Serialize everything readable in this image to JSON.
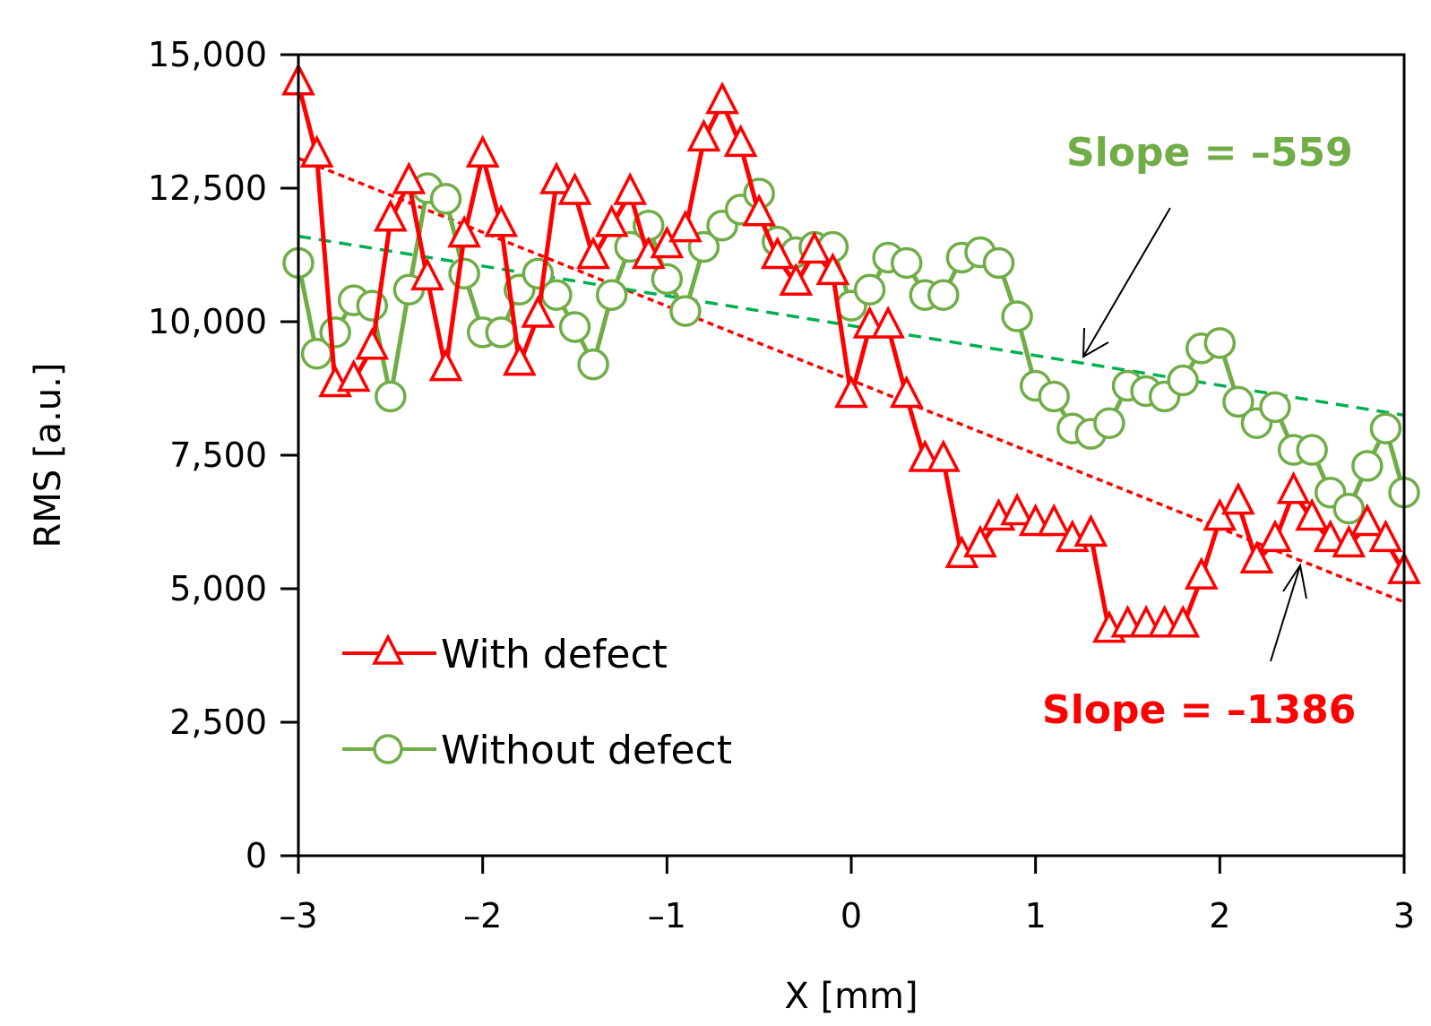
{
  "chart_data": {
    "type": "line",
    "title": "",
    "xlabel": "X [mm]",
    "ylabel": "RMS [a.u.]",
    "xlim": [
      -3,
      3
    ],
    "ylim": [
      0,
      15000
    ],
    "xticks": [
      -3,
      -2,
      -1,
      0,
      1,
      2,
      3
    ],
    "xtick_labels": [
      "–3",
      "–2",
      "–1",
      "0",
      "1",
      "2",
      "3"
    ],
    "yticks": [
      0,
      2500,
      5000,
      7500,
      10000,
      12500,
      15000
    ],
    "ytick_labels": [
      "0",
      "2,500",
      "5,000",
      "7,500",
      "10,000",
      "12,500",
      "15,000"
    ],
    "grid": false,
    "legend_position": "bottom-left",
    "series": [
      {
        "name": "With defect",
        "color": "#ff0000",
        "marker": "triangle",
        "x": [
          -3.0,
          -2.9,
          -2.8,
          -2.7,
          -2.6,
          -2.5,
          -2.4,
          -2.3,
          -2.2,
          -2.1,
          -2.0,
          -1.9,
          -1.8,
          -1.7,
          -1.6,
          -1.5,
          -1.4,
          -1.3,
          -1.2,
          -1.1,
          -1.0,
          -0.9,
          -0.8,
          -0.7,
          -0.6,
          -0.5,
          -0.4,
          -0.3,
          -0.2,
          -0.1,
          0.0,
          0.1,
          0.2,
          0.3,
          0.4,
          0.5,
          0.6,
          0.7,
          0.8,
          0.9,
          1.0,
          1.1,
          1.2,
          1.3,
          1.4,
          1.5,
          1.6,
          1.7,
          1.8,
          1.9,
          2.0,
          2.1,
          2.2,
          2.3,
          2.4,
          2.5,
          2.6,
          2.7,
          2.8,
          2.9,
          3.0
        ],
        "y": [
          14450,
          13100,
          8800,
          8900,
          9500,
          11900,
          12600,
          10800,
          9100,
          11600,
          13100,
          11800,
          9200,
          10100,
          12600,
          12400,
          11200,
          11800,
          12400,
          11200,
          11400,
          11700,
          13400,
          14100,
          13300,
          12000,
          11200,
          10700,
          11300,
          10900,
          8600,
          9900,
          9900,
          8600,
          7400,
          7400,
          5600,
          5800,
          6300,
          6400,
          6200,
          6200,
          5900,
          6000,
          4200,
          4300,
          4300,
          4300,
          4300,
          5200,
          6300,
          6600,
          5500,
          5900,
          6800,
          6300,
          5900,
          5800,
          6200,
          5900,
          5300
        ]
      },
      {
        "name": "Without defect",
        "color": "#70ad47",
        "marker": "circle",
        "x": [
          -3.0,
          -2.9,
          -2.8,
          -2.7,
          -2.6,
          -2.5,
          -2.4,
          -2.3,
          -2.2,
          -2.1,
          -2.0,
          -1.9,
          -1.8,
          -1.7,
          -1.6,
          -1.5,
          -1.4,
          -1.3,
          -1.2,
          -1.1,
          -1.0,
          -0.9,
          -0.8,
          -0.7,
          -0.6,
          -0.5,
          -0.4,
          -0.3,
          -0.2,
          -0.1,
          0.0,
          0.1,
          0.2,
          0.3,
          0.4,
          0.5,
          0.6,
          0.7,
          0.8,
          0.9,
          1.0,
          1.1,
          1.2,
          1.3,
          1.4,
          1.5,
          1.6,
          1.7,
          1.8,
          1.9,
          2.0,
          2.1,
          2.2,
          2.3,
          2.4,
          2.5,
          2.6,
          2.7,
          2.8,
          2.9,
          3.0
        ],
        "y": [
          11100,
          9400,
          9800,
          10400,
          10300,
          8600,
          10600,
          12500,
          12300,
          10900,
          9800,
          9800,
          10600,
          10900,
          10500,
          9900,
          9200,
          10500,
          11400,
          11800,
          10800,
          10200,
          11400,
          11800,
          12100,
          12400,
          11500,
          11300,
          11400,
          11400,
          10300,
          10600,
          11200,
          11100,
          10500,
          10500,
          11200,
          11300,
          11100,
          10100,
          8800,
          8600,
          8000,
          7900,
          8100,
          8800,
          8700,
          8600,
          8900,
          9500,
          9600,
          8500,
          8100,
          8400,
          7600,
          7600,
          6800,
          6500,
          7300,
          8000,
          6800
        ]
      }
    ],
    "trendlines": [
      {
        "series": "With defect",
        "color": "#ff0000",
        "style": "dashed",
        "x": [
          -3,
          3
        ],
        "y": [
          13060,
          4750
        ]
      },
      {
        "series": "Without defect",
        "color": "#00b050",
        "style": "dashed",
        "x": [
          -3,
          3
        ],
        "y": [
          11600,
          8250
        ]
      }
    ],
    "annotations": [
      {
        "text": "Slope = –559",
        "color": "#70ad47"
      },
      {
        "text": "Slope = –1386",
        "color": "#ff0000"
      }
    ]
  }
}
